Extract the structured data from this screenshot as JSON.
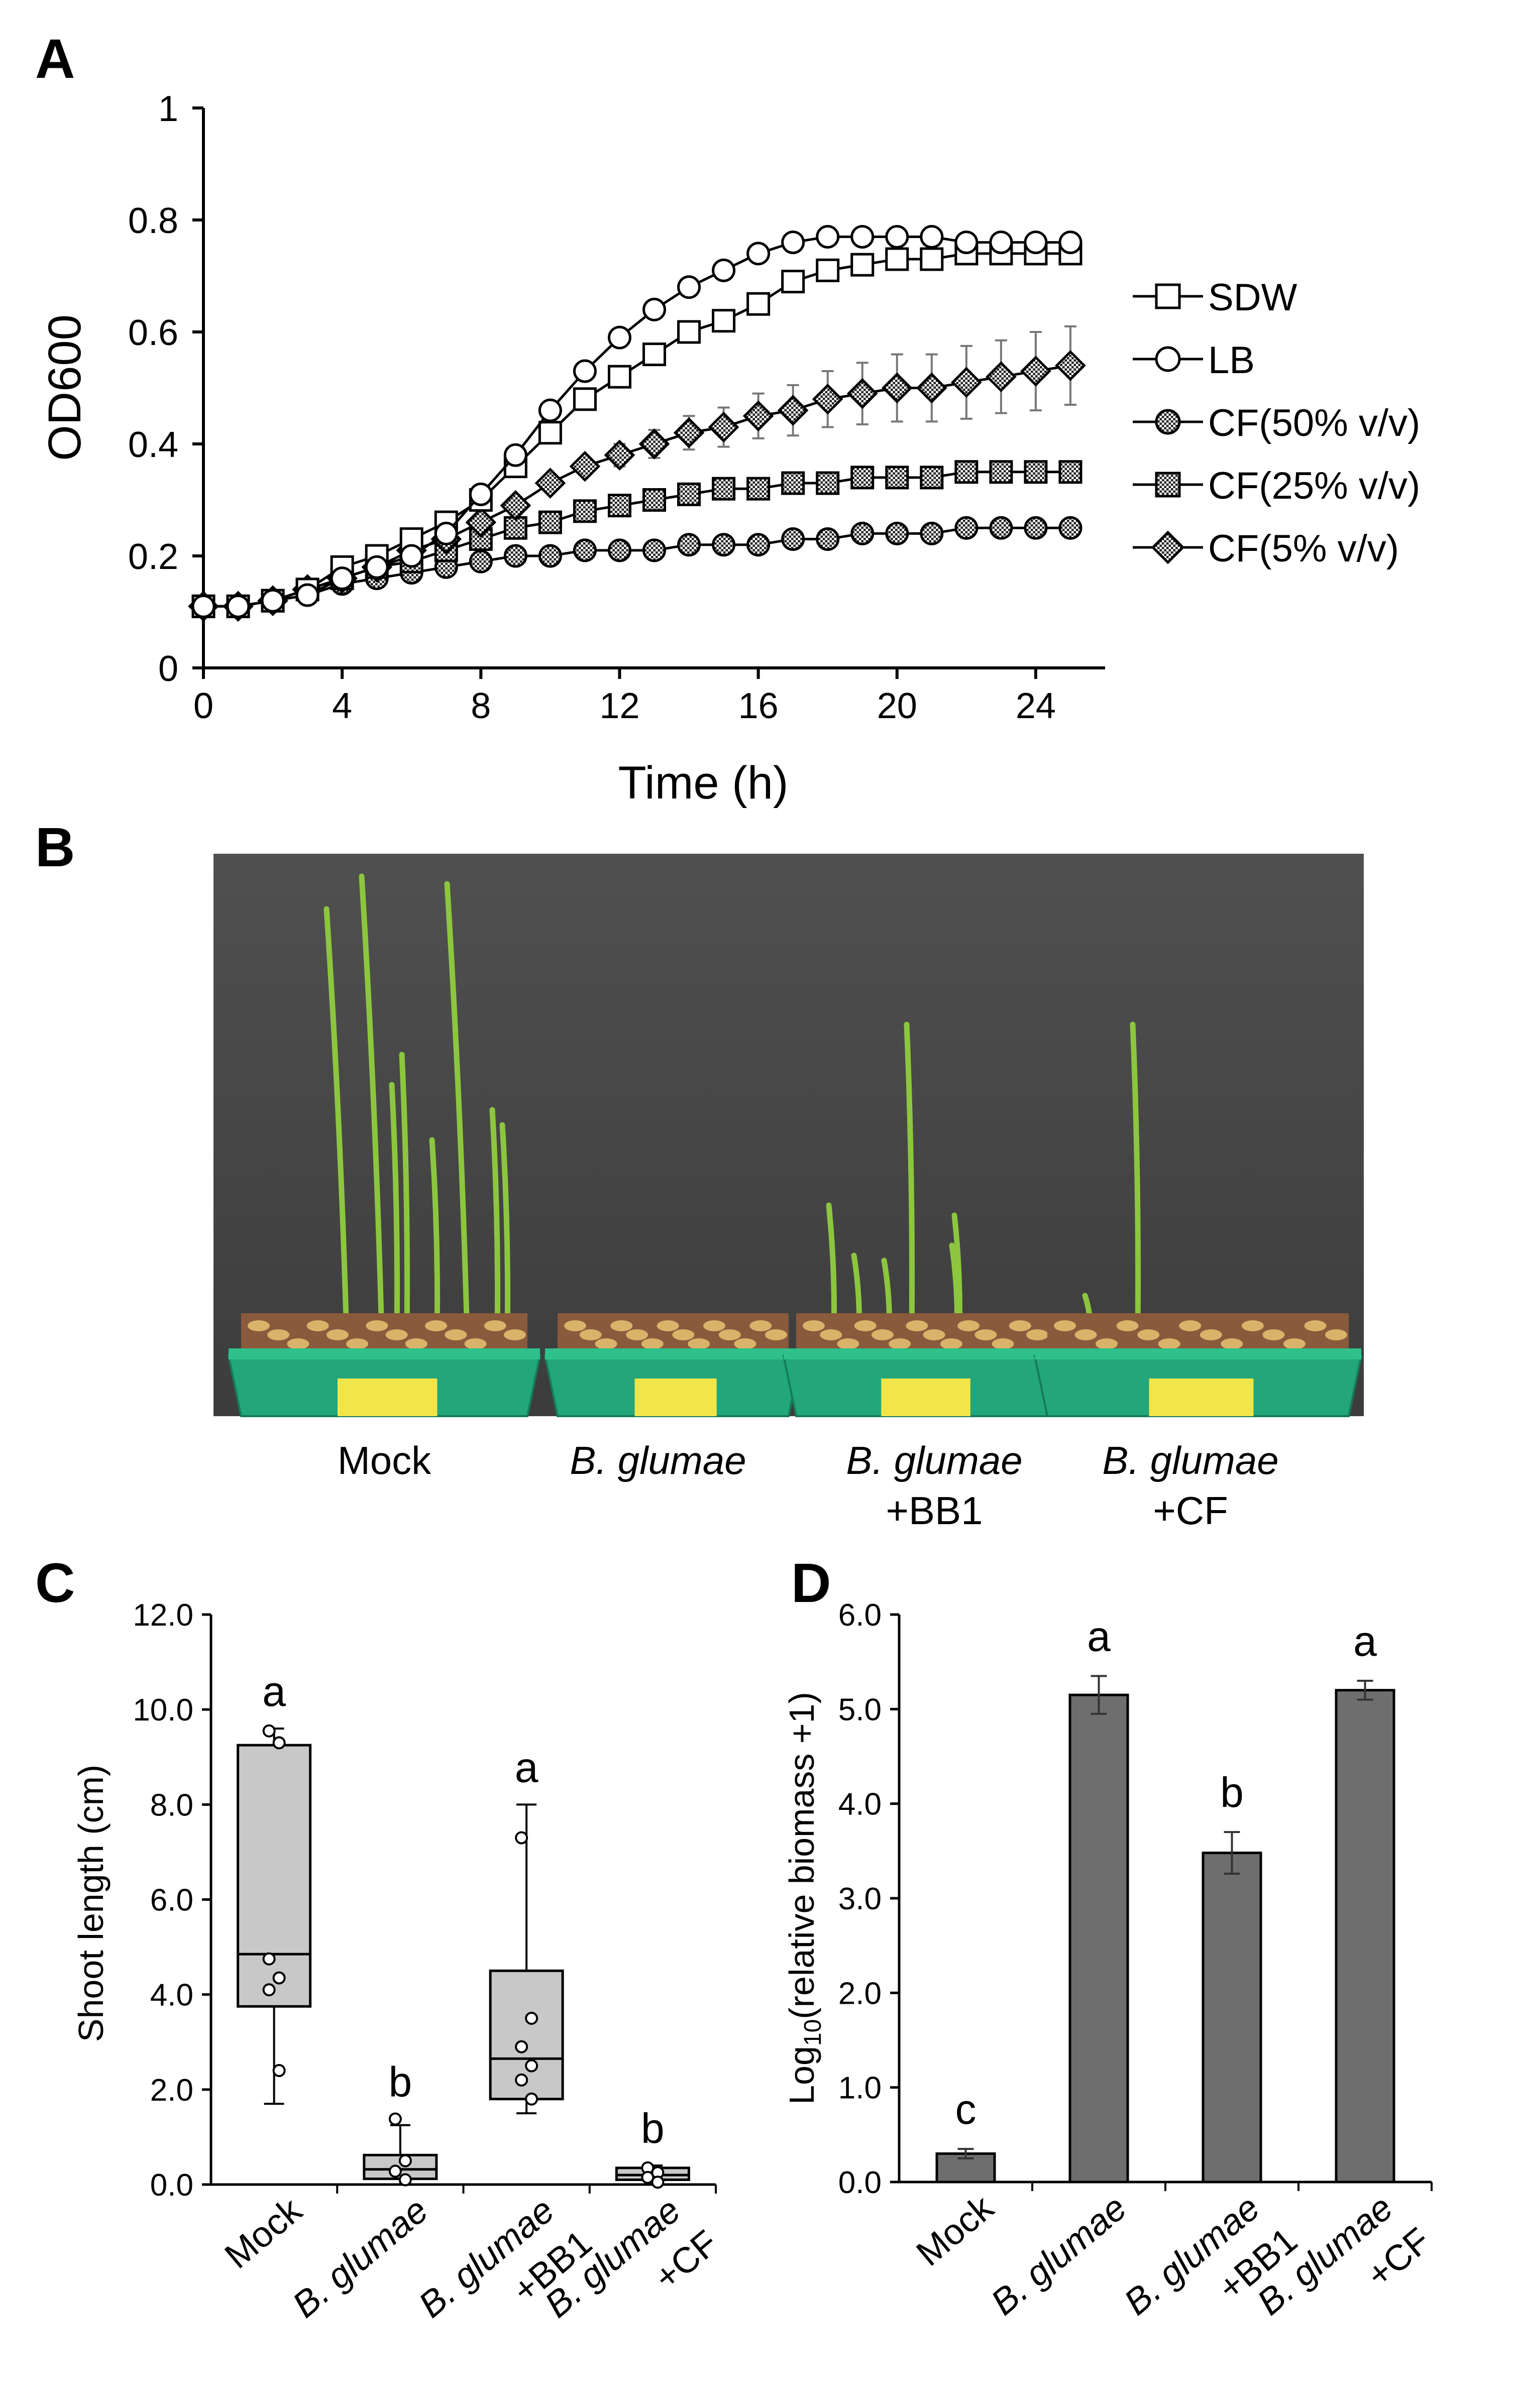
{
  "panels": {
    "a": "A",
    "b": "B",
    "c": "C",
    "d": "D"
  },
  "chart_data": [
    {
      "id": "A",
      "type": "line",
      "title": "",
      "xlabel": "Time (h)",
      "ylabel": "OD600",
      "xlim": [
        0,
        26
      ],
      "ylim": [
        0,
        1
      ],
      "xticks": [
        "0",
        "4",
        "8",
        "12",
        "16",
        "20",
        "24"
      ],
      "yticks": [
        "0",
        "0.2",
        "0.4",
        "0.6",
        "0.8",
        "1"
      ],
      "legend_position": "right",
      "x": [
        0,
        1,
        2,
        3,
        4,
        5,
        6,
        7,
        8,
        9,
        10,
        11,
        12,
        13,
        14,
        15,
        16,
        17,
        18,
        19,
        20,
        21,
        22,
        23,
        24,
        25
      ],
      "series": [
        {
          "name": "SDW",
          "marker": "open-square",
          "values": [
            0.11,
            0.11,
            0.12,
            0.14,
            0.18,
            0.2,
            0.23,
            0.26,
            0.3,
            0.36,
            0.42,
            0.48,
            0.52,
            0.56,
            0.6,
            0.62,
            0.65,
            0.69,
            0.71,
            0.72,
            0.73,
            0.73,
            0.74,
            0.74,
            0.74,
            0.74
          ],
          "errors": []
        },
        {
          "name": "LB",
          "marker": "open-circle",
          "values": [
            0.11,
            0.11,
            0.12,
            0.13,
            0.16,
            0.18,
            0.2,
            0.24,
            0.31,
            0.38,
            0.46,
            0.53,
            0.59,
            0.64,
            0.68,
            0.71,
            0.74,
            0.76,
            0.77,
            0.77,
            0.77,
            0.77,
            0.76,
            0.76,
            0.76,
            0.76
          ],
          "errors": []
        },
        {
          "name": "CF(50% v/v)",
          "marker": "hatched-circle",
          "values": [
            0.11,
            0.11,
            0.12,
            0.13,
            0.15,
            0.16,
            0.17,
            0.18,
            0.19,
            0.2,
            0.2,
            0.21,
            0.21,
            0.21,
            0.22,
            0.22,
            0.22,
            0.23,
            0.23,
            0.24,
            0.24,
            0.24,
            0.25,
            0.25,
            0.25,
            0.25
          ],
          "errors": []
        },
        {
          "name": "CF(25% v/v)",
          "marker": "hatched-square",
          "values": [
            0.11,
            0.11,
            0.12,
            0.14,
            0.16,
            0.18,
            0.19,
            0.21,
            0.23,
            0.25,
            0.26,
            0.28,
            0.29,
            0.3,
            0.31,
            0.32,
            0.32,
            0.33,
            0.33,
            0.34,
            0.34,
            0.34,
            0.35,
            0.35,
            0.35,
            0.35
          ],
          "errors": []
        },
        {
          "name": "CF(5% v/v)",
          "marker": "hatched-diamond",
          "values": [
            0.11,
            0.11,
            0.12,
            0.14,
            0.16,
            0.18,
            0.21,
            0.23,
            0.26,
            0.29,
            0.33,
            0.36,
            0.38,
            0.4,
            0.42,
            0.43,
            0.45,
            0.46,
            0.48,
            0.49,
            0.5,
            0.5,
            0.51,
            0.52,
            0.53,
            0.54
          ],
          "errors": [
            0,
            0,
            0,
            0,
            0,
            0,
            0,
            0,
            0,
            0.01,
            0.01,
            0.015,
            0.02,
            0.025,
            0.03,
            0.035,
            0.04,
            0.045,
            0.05,
            0.055,
            0.06,
            0.06,
            0.065,
            0.065,
            0.07,
            0.07
          ]
        }
      ]
    },
    {
      "id": "C",
      "type": "box",
      "title": "",
      "xlabel": "",
      "ylabel": "Shoot length (cm)",
      "ylim": [
        0,
        12
      ],
      "yticks": [
        "0.0",
        "2.0",
        "4.0",
        "6.0",
        "8.0",
        "10.0",
        "12.0"
      ],
      "categories": [
        {
          "lines": [
            "Mock"
          ],
          "italic": [
            false
          ]
        },
        {
          "lines": [
            "B. glumae"
          ],
          "italic": [
            true
          ]
        },
        {
          "lines": [
            "B. glumae",
            "+BB1"
          ],
          "italic": [
            true,
            false
          ]
        },
        {
          "lines": [
            "B. glumae",
            "+CF"
          ],
          "italic": [
            true,
            false
          ]
        }
      ],
      "boxes": [
        {
          "min": 1.7,
          "q1": 3.75,
          "median": 4.85,
          "q3": 9.25,
          "max": 9.6,
          "points": [
            9.55,
            9.3,
            4.75,
            4.35,
            4.1,
            2.4
          ],
          "letter": "a"
        },
        {
          "min": 0.0,
          "q1": 0.12,
          "median": 0.32,
          "q3": 0.62,
          "max": 1.25,
          "points": [
            1.38,
            0.5,
            0.28,
            0.1
          ],
          "letter": "b"
        },
        {
          "min": 1.5,
          "q1": 1.8,
          "median": 2.65,
          "q3": 4.5,
          "max": 8.0,
          "points": [
            7.3,
            3.5,
            2.9,
            2.5,
            2.2,
            1.8
          ],
          "letter": "a"
        },
        {
          "min": 0.0,
          "q1": 0.1,
          "median": 0.2,
          "q3": 0.35,
          "max": 0.4,
          "points": [
            0.35,
            0.25,
            0.15,
            0.05
          ],
          "letter": "b"
        }
      ]
    },
    {
      "id": "D",
      "type": "bar",
      "title": "",
      "xlabel": "",
      "ylabel": "Log10(relative biomass +1)",
      "ylabel_parts": {
        "prefix": "Log",
        "sub": "10",
        "suffix": "(relative biomass +1)"
      },
      "ylim": [
        0,
        6
      ],
      "yticks": [
        "0.0",
        "1.0",
        "2.0",
        "3.0",
        "4.0",
        "5.0",
        "6.0"
      ],
      "categories": [
        {
          "lines": [
            "Mock"
          ],
          "italic": [
            false
          ]
        },
        {
          "lines": [
            "B. glumae"
          ],
          "italic": [
            true
          ]
        },
        {
          "lines": [
            "B. glumae",
            "+BB1"
          ],
          "italic": [
            true,
            false
          ]
        },
        {
          "lines": [
            "B. glumae",
            "+CF"
          ],
          "italic": [
            true,
            false
          ]
        }
      ],
      "values": [
        0.3,
        5.15,
        3.48,
        5.2
      ],
      "errors": [
        0.05,
        0.2,
        0.22,
        0.1
      ],
      "letters": [
        "c",
        "a",
        "b",
        "a"
      ]
    }
  ],
  "photo": {
    "captions": [
      {
        "lines": [
          "Mock"
        ],
        "italic": [
          false
        ]
      },
      {
        "lines": [
          "B. glumae"
        ],
        "italic": [
          true
        ]
      },
      {
        "lines": [
          "B. glumae",
          "+BB1"
        ],
        "italic": [
          true,
          false
        ]
      },
      {
        "lines": [
          "B. glumae",
          "+CF"
        ],
        "italic": [
          true,
          false
        ]
      }
    ]
  },
  "colors": {
    "ink": "#000000",
    "box_fill": "#c8c8c8",
    "bar_fill": "#6e6e6e",
    "photo_background": "#4a4a4a",
    "tray": "#22a67a",
    "soil": "#8a5a3c",
    "leaf": "#8cc63f"
  }
}
